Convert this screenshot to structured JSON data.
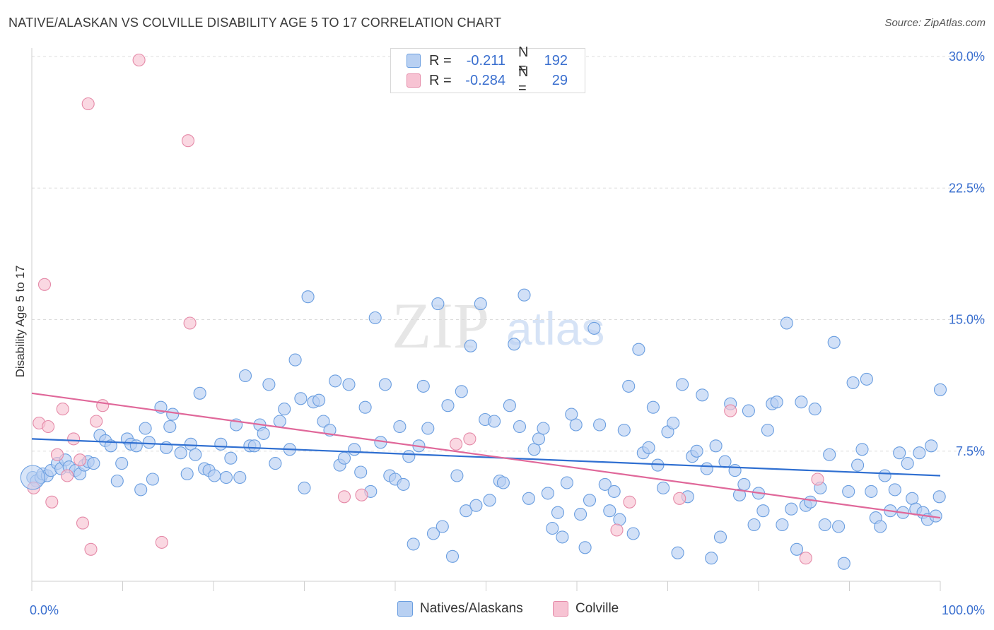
{
  "title": "NATIVE/ALASKAN VS COLVILLE DISABILITY AGE 5 TO 17 CORRELATION CHART",
  "source": "Source: ZipAtlas.com",
  "watermark": {
    "zip": "ZIP",
    "atlas": "atlas"
  },
  "legend": {
    "rows": [
      {
        "r_label": "R =",
        "r_value": "-0.211",
        "n_label": "N =",
        "n_value": "192"
      },
      {
        "r_label": "R =",
        "r_value": "-0.284",
        "n_label": "N =",
        "n_value": "29"
      }
    ]
  },
  "bottom_legend": {
    "series1": "Natives/Alaskans",
    "series2": "Colville"
  },
  "chart_data": {
    "type": "scatter",
    "title": "NATIVE/ALASKAN VS COLVILLE DISABILITY AGE 5 TO 17 CORRELATION CHART",
    "xlabel": "",
    "ylabel": "Disability Age 5 to 17",
    "xlim": [
      0,
      100
    ],
    "ylim": [
      0,
      30
    ],
    "y_ticks": [
      7.5,
      15.0,
      22.5,
      30.0
    ],
    "y_tick_labels": [
      "7.5%",
      "15.0%",
      "22.5%",
      "30.0%"
    ],
    "x_tick_labels": [
      "0.0%",
      "100.0%"
    ],
    "grid": true,
    "legend_position": "top-center",
    "colors": {
      "series1_fill": "#b8d0f2",
      "series1_stroke": "#6a9ee0",
      "series1_line": "#2f6fd1",
      "series2_fill": "#f7c3d3",
      "series2_stroke": "#e58aa8",
      "series2_line": "#e0689a",
      "tick_label": "#3a6fcf"
    },
    "series": [
      {
        "name": "Natives/Alaskans",
        "r": -0.211,
        "n": 192,
        "trend": {
          "x": [
            0,
            100
          ],
          "y": [
            8.2,
            6.1
          ]
        },
        "points": [
          [
            0.1,
            6.0
          ],
          [
            0.5,
            5.8
          ],
          [
            1.0,
            6.0
          ],
          [
            1.2,
            6.2
          ],
          [
            1.7,
            6.1
          ],
          [
            2.1,
            6.4
          ],
          [
            2.8,
            6.8
          ],
          [
            3.2,
            6.5
          ],
          [
            3.7,
            7.0
          ],
          [
            4.1,
            6.6
          ],
          [
            4.8,
            6.4
          ],
          [
            5.3,
            6.2
          ],
          [
            5.8,
            6.7
          ],
          [
            6.2,
            6.9
          ],
          [
            6.8,
            6.8
          ],
          [
            7.5,
            8.4
          ],
          [
            8.1,
            8.1
          ],
          [
            8.7,
            7.8
          ],
          [
            9.4,
            5.8
          ],
          [
            9.9,
            6.8
          ],
          [
            10.5,
            8.2
          ],
          [
            10.9,
            7.9
          ],
          [
            11.5,
            7.8
          ],
          [
            12.0,
            5.3
          ],
          [
            12.5,
            8.8
          ],
          [
            12.9,
            8.0
          ],
          [
            13.3,
            5.9
          ],
          [
            14.2,
            10.0
          ],
          [
            14.8,
            7.7
          ],
          [
            15.2,
            8.9
          ],
          [
            15.5,
            9.6
          ],
          [
            16.4,
            7.4
          ],
          [
            17.1,
            6.2
          ],
          [
            17.5,
            7.9
          ],
          [
            18.0,
            7.3
          ],
          [
            18.5,
            10.8
          ],
          [
            19.0,
            6.5
          ],
          [
            19.5,
            6.4
          ],
          [
            20.1,
            6.1
          ],
          [
            20.8,
            7.9
          ],
          [
            21.4,
            6.0
          ],
          [
            21.9,
            7.1
          ],
          [
            22.5,
            9.0
          ],
          [
            22.9,
            6.0
          ],
          [
            23.5,
            11.8
          ],
          [
            24.0,
            7.8
          ],
          [
            24.5,
            7.8
          ],
          [
            25.1,
            9.0
          ],
          [
            25.5,
            8.5
          ],
          [
            26.1,
            11.3
          ],
          [
            26.8,
            6.8
          ],
          [
            27.3,
            9.2
          ],
          [
            27.8,
            9.9
          ],
          [
            28.4,
            7.6
          ],
          [
            29.0,
            12.7
          ],
          [
            29.6,
            10.5
          ],
          [
            30.0,
            5.4
          ],
          [
            30.4,
            16.3
          ],
          [
            31.0,
            10.3
          ],
          [
            31.6,
            10.4
          ],
          [
            32.1,
            9.2
          ],
          [
            32.8,
            8.7
          ],
          [
            33.4,
            11.5
          ],
          [
            33.9,
            6.7
          ],
          [
            34.4,
            7.1
          ],
          [
            34.9,
            11.3
          ],
          [
            35.5,
            7.6
          ],
          [
            36.2,
            6.3
          ],
          [
            36.7,
            10.0
          ],
          [
            37.3,
            5.2
          ],
          [
            37.8,
            15.1
          ],
          [
            38.4,
            8.0
          ],
          [
            38.9,
            11.3
          ],
          [
            39.4,
            6.1
          ],
          [
            40.0,
            5.9
          ],
          [
            40.5,
            8.9
          ],
          [
            40.9,
            5.6
          ],
          [
            41.5,
            7.2
          ],
          [
            42.0,
            2.2
          ],
          [
            42.6,
            7.8
          ],
          [
            43.1,
            11.2
          ],
          [
            43.6,
            8.8
          ],
          [
            44.2,
            2.8
          ],
          [
            44.7,
            15.9
          ],
          [
            45.2,
            3.2
          ],
          [
            45.8,
            10.1
          ],
          [
            46.3,
            1.5
          ],
          [
            46.8,
            6.1
          ],
          [
            47.3,
            10.9
          ],
          [
            47.8,
            4.1
          ],
          [
            48.3,
            13.5
          ],
          [
            48.9,
            4.4
          ],
          [
            49.4,
            15.9
          ],
          [
            49.9,
            9.3
          ],
          [
            50.4,
            4.7
          ],
          [
            50.9,
            9.2
          ],
          [
            51.5,
            5.8
          ],
          [
            51.9,
            5.7
          ],
          [
            52.6,
            10.1
          ],
          [
            53.1,
            13.6
          ],
          [
            53.7,
            8.9
          ],
          [
            54.2,
            16.4
          ],
          [
            54.7,
            4.8
          ],
          [
            55.3,
            7.6
          ],
          [
            55.8,
            8.2
          ],
          [
            56.3,
            8.8
          ],
          [
            56.8,
            5.1
          ],
          [
            57.3,
            3.1
          ],
          [
            57.9,
            4.0
          ],
          [
            58.4,
            2.6
          ],
          [
            58.9,
            5.7
          ],
          [
            59.4,
            9.6
          ],
          [
            59.9,
            9.0
          ],
          [
            60.4,
            3.9
          ],
          [
            60.9,
            2.0
          ],
          [
            61.4,
            4.7
          ],
          [
            61.9,
            14.5
          ],
          [
            62.5,
            9.0
          ],
          [
            63.1,
            5.6
          ],
          [
            63.6,
            4.1
          ],
          [
            64.1,
            5.2
          ],
          [
            64.7,
            3.6
          ],
          [
            65.2,
            8.7
          ],
          [
            65.7,
            11.2
          ],
          [
            66.2,
            2.8
          ],
          [
            66.8,
            13.3
          ],
          [
            67.3,
            7.4
          ],
          [
            67.9,
            7.7
          ],
          [
            68.4,
            10.0
          ],
          [
            68.9,
            6.7
          ],
          [
            69.5,
            5.4
          ],
          [
            70.0,
            8.6
          ],
          [
            70.6,
            9.1
          ],
          [
            71.1,
            1.7
          ],
          [
            71.6,
            11.3
          ],
          [
            72.2,
            4.9
          ],
          [
            72.7,
            7.2
          ],
          [
            73.2,
            7.5
          ],
          [
            73.8,
            10.7
          ],
          [
            74.3,
            6.5
          ],
          [
            74.8,
            1.4
          ],
          [
            75.3,
            7.8
          ],
          [
            75.8,
            2.6
          ],
          [
            76.3,
            6.9
          ],
          [
            76.9,
            10.2
          ],
          [
            77.4,
            6.4
          ],
          [
            77.9,
            5.0
          ],
          [
            78.4,
            5.6
          ],
          [
            78.9,
            9.8
          ],
          [
            79.5,
            3.3
          ],
          [
            80.0,
            5.1
          ],
          [
            80.5,
            4.1
          ],
          [
            81.0,
            8.7
          ],
          [
            81.5,
            10.2
          ],
          [
            82.0,
            10.3
          ],
          [
            82.6,
            3.3
          ],
          [
            83.1,
            14.8
          ],
          [
            83.6,
            4.2
          ],
          [
            84.2,
            1.9
          ],
          [
            84.7,
            10.3
          ],
          [
            85.2,
            4.4
          ],
          [
            85.7,
            4.6
          ],
          [
            86.2,
            9.9
          ],
          [
            86.8,
            5.4
          ],
          [
            87.3,
            3.3
          ],
          [
            87.8,
            7.3
          ],
          [
            88.3,
            13.7
          ],
          [
            88.8,
            3.2
          ],
          [
            89.4,
            1.1
          ],
          [
            89.9,
            5.2
          ],
          [
            90.4,
            11.4
          ],
          [
            90.9,
            6.7
          ],
          [
            91.4,
            7.6
          ],
          [
            91.9,
            11.6
          ],
          [
            92.4,
            5.2
          ],
          [
            92.9,
            3.7
          ],
          [
            93.4,
            3.2
          ],
          [
            93.9,
            6.1
          ],
          [
            94.5,
            4.1
          ],
          [
            95.0,
            5.3
          ],
          [
            95.5,
            7.4
          ],
          [
            95.9,
            4.0
          ],
          [
            96.4,
            6.8
          ],
          [
            96.9,
            4.8
          ],
          [
            97.3,
            4.2
          ],
          [
            97.7,
            7.4
          ],
          [
            98.1,
            4.0
          ],
          [
            98.6,
            3.6
          ],
          [
            99.0,
            7.8
          ],
          [
            99.5,
            3.8
          ],
          [
            99.9,
            4.9
          ],
          [
            100.0,
            11.0
          ]
        ]
      },
      {
        "name": "Colville",
        "r": -0.284,
        "n": 29,
        "trend": {
          "x": [
            0,
            100
          ],
          "y": [
            10.8,
            3.7
          ]
        },
        "points": [
          [
            0.2,
            5.4
          ],
          [
            0.8,
            9.1
          ],
          [
            1.4,
            17.0
          ],
          [
            1.8,
            8.9
          ],
          [
            2.2,
            4.6
          ],
          [
            2.8,
            7.3
          ],
          [
            3.4,
            9.9
          ],
          [
            3.9,
            6.1
          ],
          [
            4.6,
            8.2
          ],
          [
            5.3,
            7.0
          ],
          [
            5.6,
            3.4
          ],
          [
            6.2,
            27.3
          ],
          [
            6.5,
            1.9
          ],
          [
            7.1,
            9.2
          ],
          [
            7.8,
            10.1
          ],
          [
            11.8,
            29.8
          ],
          [
            14.3,
            2.3
          ],
          [
            17.2,
            25.2
          ],
          [
            17.4,
            14.8
          ],
          [
            34.4,
            4.9
          ],
          [
            36.3,
            5.0
          ],
          [
            46.7,
            7.9
          ],
          [
            48.2,
            8.2
          ],
          [
            64.4,
            3.0
          ],
          [
            65.8,
            4.6
          ],
          [
            71.3,
            4.8
          ],
          [
            76.9,
            9.8
          ],
          [
            85.2,
            1.4
          ],
          [
            86.5,
            5.9
          ]
        ]
      }
    ]
  }
}
